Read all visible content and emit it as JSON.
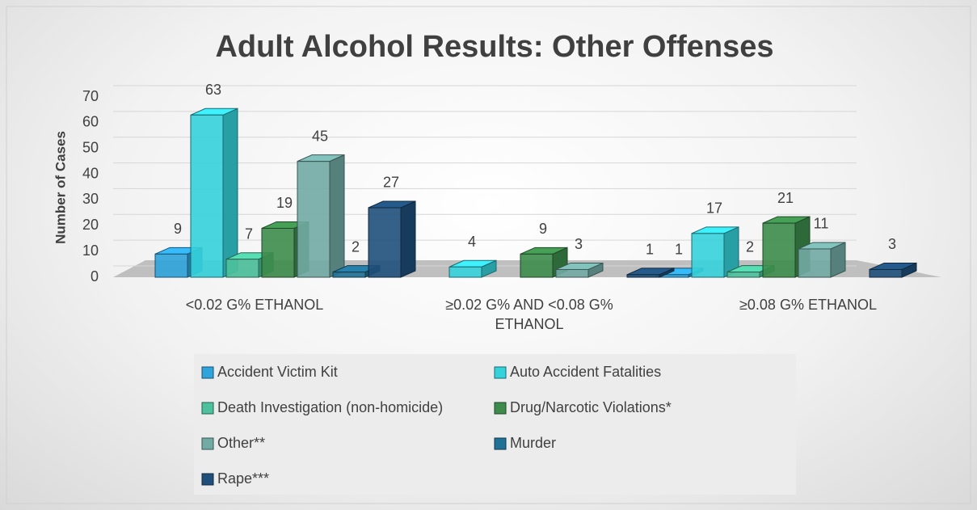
{
  "chart_data": {
    "type": "bar3d",
    "title": "Adult Alcohol Results: Other Offenses",
    "y_label": "Number of Cases",
    "categories": [
      "<0.02 G% ETHANOL",
      "≥0.02 G%  AND <0.08 G% ETHANOL",
      "≥0.08 G% ETHANOL"
    ],
    "series": [
      {
        "name": "Accident Victim Kit",
        "color": "#2fa3dc",
        "values": [
          9,
          null,
          1
        ]
      },
      {
        "name": "Auto Accident Fatalities",
        "color": "#35d2dc",
        "values": [
          63,
          4,
          17
        ]
      },
      {
        "name": "Death Investigation (non-homicide)",
        "color": "#4cc19c",
        "values": [
          7,
          null,
          2
        ]
      },
      {
        "name": "Drug/Narcotic Violations*",
        "color": "#3d8c4c",
        "values": [
          19,
          9,
          21
        ]
      },
      {
        "name": "Other**",
        "color": "#72aaa4",
        "values": [
          45,
          3,
          11
        ]
      },
      {
        "name": "Murder",
        "color": "#217196",
        "values": [
          2,
          null,
          null
        ]
      },
      {
        "name": "Rape***",
        "color": "#1f4f7a",
        "values": [
          27,
          1,
          3
        ]
      }
    ],
    "ylim": [
      0,
      70
    ],
    "yticks": [
      0,
      10,
      20,
      30,
      40,
      50,
      60,
      70
    ],
    "grid": true,
    "legend": "bottom"
  }
}
